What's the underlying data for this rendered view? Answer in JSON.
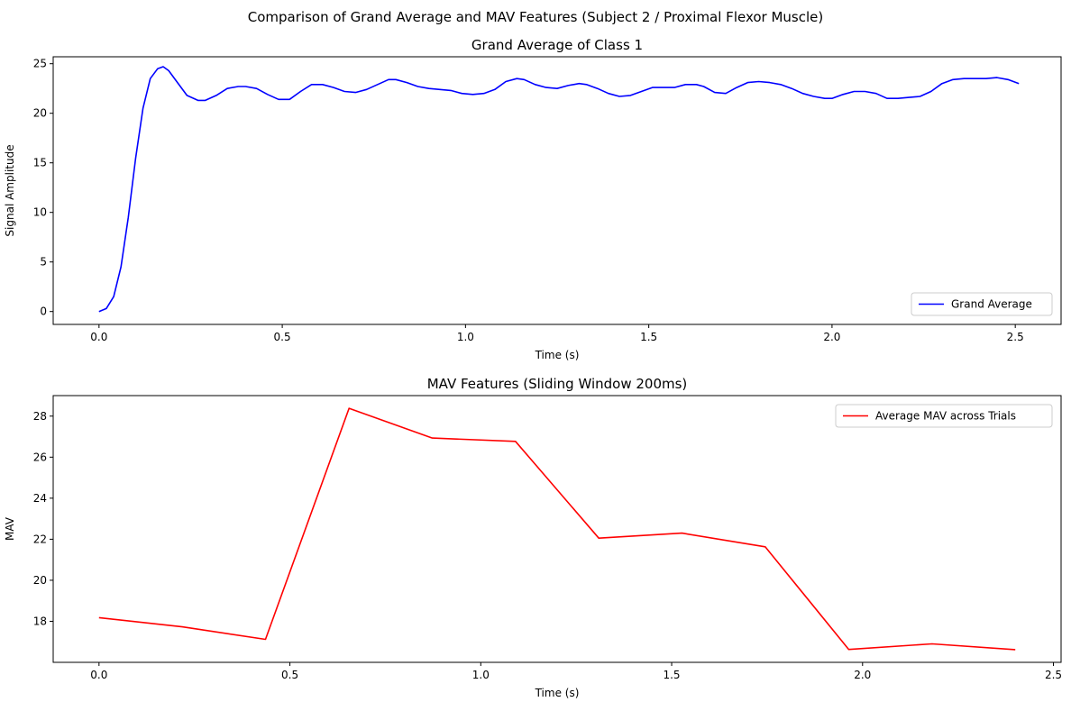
{
  "figure": {
    "suptitle": "Comparison of Grand Average and MAV Features (Subject 2 / Proximal Flexor Muscle)"
  },
  "chart_data": [
    {
      "type": "line",
      "title": "Grand Average of Class 1",
      "xlabel": "Time (s)",
      "ylabel": "Signal Amplitude",
      "xlim": [
        -0.125,
        2.625
      ],
      "ylim": [
        -1.3,
        25.7
      ],
      "xticks": [
        0.0,
        0.5,
        1.0,
        1.5,
        2.0,
        2.5
      ],
      "xtick_labels": [
        "0.0",
        "0.5",
        "1.0",
        "1.5",
        "2.0",
        "2.5"
      ],
      "yticks": [
        0,
        5,
        10,
        15,
        20,
        25
      ],
      "ytick_labels": [
        "0",
        "5",
        "10",
        "15",
        "20",
        "25"
      ],
      "grid": false,
      "legend_position": "lower-right",
      "series": [
        {
          "name": "Grand Average",
          "color": "#0000ff",
          "x": [
            0.0,
            0.02,
            0.04,
            0.06,
            0.08,
            0.1,
            0.12,
            0.14,
            0.16,
            0.175,
            0.19,
            0.21,
            0.24,
            0.27,
            0.29,
            0.32,
            0.35,
            0.38,
            0.4,
            0.43,
            0.46,
            0.49,
            0.52,
            0.55,
            0.58,
            0.61,
            0.64,
            0.67,
            0.7,
            0.73,
            0.76,
            0.79,
            0.81,
            0.84,
            0.87,
            0.9,
            0.93,
            0.96,
            0.99,
            1.02,
            1.05,
            1.08,
            1.11,
            1.14,
            1.16,
            1.19,
            1.22,
            1.25,
            1.28,
            1.31,
            1.33,
            1.36,
            1.39,
            1.42,
            1.45,
            1.48,
            1.51,
            1.54,
            1.57,
            1.6,
            1.63,
            1.65,
            1.68,
            1.71,
            1.74,
            1.77,
            1.8,
            1.83,
            1.86,
            1.89,
            1.92,
            1.95,
            1.98,
            2.0,
            2.03,
            2.06,
            2.09,
            2.12,
            2.15,
            2.18,
            2.21,
            2.24,
            2.27,
            2.3,
            2.33,
            2.36,
            2.39,
            2.42,
            2.45,
            2.48,
            2.51
          ],
          "y": [
            0.0,
            0.3,
            1.5,
            4.5,
            9.5,
            15.5,
            20.5,
            23.5,
            24.5,
            24.7,
            24.3,
            23.3,
            21.8,
            21.3,
            21.3,
            21.8,
            22.5,
            22.7,
            22.7,
            22.5,
            21.9,
            21.4,
            21.4,
            22.2,
            22.9,
            22.9,
            22.6,
            22.2,
            22.1,
            22.4,
            22.9,
            23.4,
            23.4,
            23.1,
            22.7,
            22.5,
            22.4,
            22.3,
            22.0,
            21.9,
            22.0,
            22.4,
            23.2,
            23.5,
            23.4,
            22.9,
            22.6,
            22.5,
            22.8,
            23.0,
            22.9,
            22.5,
            22.0,
            21.7,
            21.8,
            22.2,
            22.6,
            22.6,
            22.6,
            22.9,
            22.9,
            22.7,
            22.1,
            22.0,
            22.6,
            23.1,
            23.2,
            23.1,
            22.9,
            22.5,
            22.0,
            21.7,
            21.5,
            21.5,
            21.9,
            22.2,
            22.2,
            22.0,
            21.5,
            21.5,
            21.6,
            21.7,
            22.2,
            23.0,
            23.4,
            23.5,
            23.5,
            23.5,
            23.6,
            23.4,
            23.0
          ]
        }
      ]
    },
    {
      "type": "line",
      "title": "MAV Features (Sliding Window 200ms)",
      "xlabel": "Time (s)",
      "ylabel": "MAV",
      "xlim": [
        -0.12,
        2.52
      ],
      "ylim": [
        16.0,
        29.0
      ],
      "xticks": [
        0.0,
        0.5,
        1.0,
        1.5,
        2.0,
        2.5
      ],
      "xtick_labels": [
        "0.0",
        "0.5",
        "1.0",
        "1.5",
        "2.0",
        "2.5"
      ],
      "yticks": [
        18,
        20,
        22,
        24,
        26,
        28
      ],
      "ytick_labels": [
        "18",
        "20",
        "22",
        "24",
        "26",
        "28"
      ],
      "grid": false,
      "legend_position": "upper-right",
      "series": [
        {
          "name": "Average MAV across Trials",
          "color": "#ff0000",
          "x": [
            0.0,
            0.218,
            0.436,
            0.655,
            0.873,
            1.091,
            1.309,
            1.527,
            1.745,
            1.964,
            2.182,
            2.4
          ],
          "y": [
            18.18,
            17.73,
            17.12,
            28.38,
            26.93,
            26.77,
            22.05,
            22.3,
            21.63,
            16.63,
            16.9,
            16.62
          ]
        }
      ]
    }
  ]
}
